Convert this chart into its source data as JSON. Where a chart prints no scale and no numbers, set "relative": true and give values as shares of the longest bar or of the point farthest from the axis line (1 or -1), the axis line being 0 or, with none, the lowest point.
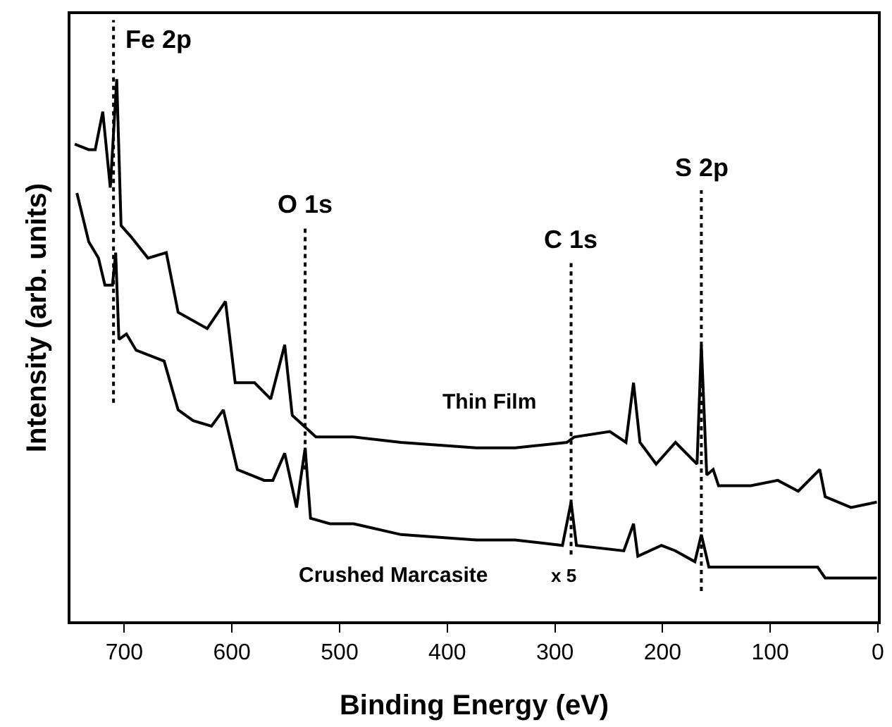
{
  "chart_data": {
    "type": "line",
    "relative": true,
    "xlabel": "Binding Energy (eV)",
    "ylabel": "Intensity (arb. units)",
    "xlim": [
      750,
      0
    ],
    "xticks": [
      700,
      600,
      500,
      400,
      300,
      200,
      100,
      0
    ],
    "legend": false,
    "marker": "none",
    "line_style": "solid",
    "series": [
      {
        "name": "Thin Film",
        "color": "#000000",
        "x": [
          746,
          733,
          727,
          720,
          713,
          707,
          703,
          694,
          678,
          661,
          650,
          623,
          606,
          597,
          579,
          564,
          551,
          544,
          522,
          487,
          443,
          373,
          337,
          289,
          282,
          249,
          234,
          227,
          221,
          206,
          188,
          168,
          164,
          159,
          153,
          148,
          118,
          93,
          74,
          54,
          49,
          25,
          1
        ],
        "values": [
          0.88,
          0.87,
          0.87,
          0.94,
          0.8,
          1.0,
          0.73,
          0.71,
          0.67,
          0.68,
          0.57,
          0.54,
          0.59,
          0.44,
          0.44,
          0.41,
          0.51,
          0.38,
          0.34,
          0.34,
          0.33,
          0.32,
          0.32,
          0.33,
          0.34,
          0.35,
          0.33,
          0.44,
          0.33,
          0.29,
          0.33,
          0.29,
          0.51,
          0.27,
          0.28,
          0.25,
          0.25,
          0.26,
          0.24,
          0.28,
          0.23,
          0.21,
          0.22
        ]
      },
      {
        "name": "Crushed Marcasite",
        "color": "#000000",
        "x": [
          744,
          733,
          724,
          718,
          711,
          708,
          705,
          698,
          689,
          663,
          650,
          636,
          619,
          608,
          595,
          570,
          562,
          551,
          540,
          532,
          527,
          509,
          487,
          443,
          373,
          337,
          293,
          285,
          280,
          236,
          227,
          223,
          201,
          188,
          170,
          164,
          157,
          118,
          91,
          56,
          49,
          1
        ],
        "values": [
          0.79,
          0.7,
          0.67,
          0.62,
          0.62,
          0.68,
          0.52,
          0.53,
          0.5,
          0.48,
          0.39,
          0.37,
          0.36,
          0.39,
          0.28,
          0.26,
          0.26,
          0.31,
          0.21,
          0.32,
          0.19,
          0.18,
          0.18,
          0.16,
          0.15,
          0.15,
          0.14,
          0.22,
          0.14,
          0.13,
          0.18,
          0.12,
          0.14,
          0.13,
          0.11,
          0.16,
          0.1,
          0.1,
          0.1,
          0.1,
          0.08,
          0.08
        ]
      }
    ],
    "ref_lines": [
      {
        "axis": "x",
        "value": 710,
        "label": "Fe 2p",
        "line_style": "dotted",
        "color": "#000000"
      },
      {
        "axis": "x",
        "value": 532,
        "label": "O 1s",
        "line_style": "dotted",
        "color": "#000000"
      },
      {
        "axis": "x",
        "value": 285,
        "label": "C 1s",
        "line_style": "dotted",
        "color": "#000000"
      },
      {
        "axis": "x",
        "value": 164,
        "label": "S 2p",
        "line_style": "dotted",
        "color": "#000000"
      }
    ],
    "annotations": [
      "x 5"
    ]
  }
}
